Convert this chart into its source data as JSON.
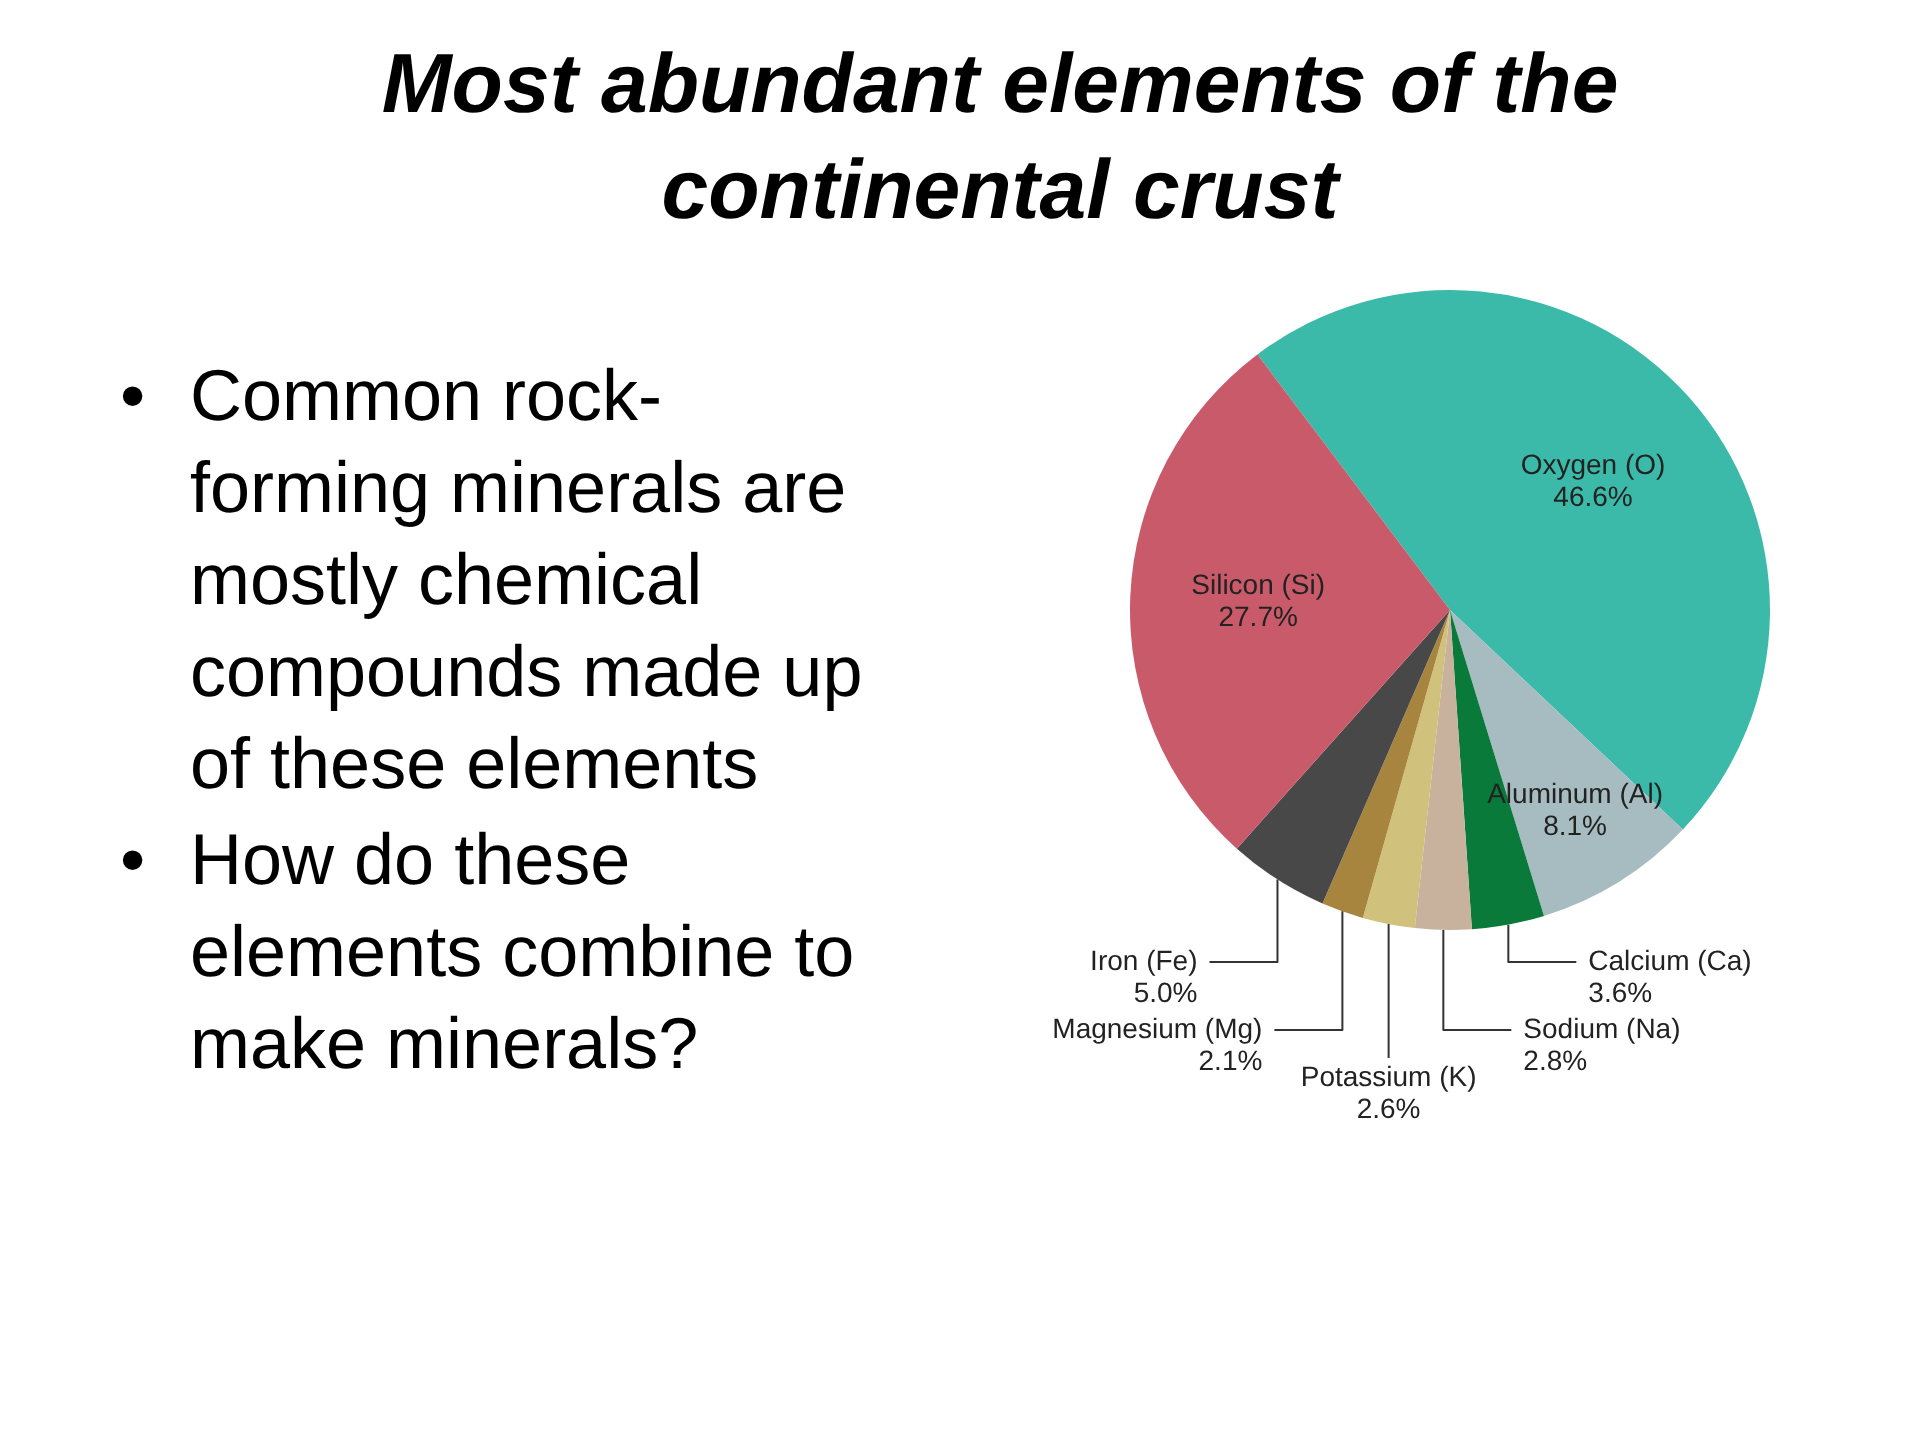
{
  "chart_data": {
    "type": "pie",
    "title": "Most abundant elements of the continental crust",
    "categories": [
      "Oxygen (O)",
      "Aluminum (Al)",
      "Calcium (Ca)",
      "Sodium (Na)",
      "Potassium (K)",
      "Magnesium (Mg)",
      "Iron (Fe)",
      "Silicon (Si)"
    ],
    "values": [
      46.6,
      8.1,
      3.6,
      2.8,
      2.6,
      2.1,
      5.0,
      27.7
    ],
    "colors": [
      "#3bbaa9",
      "#a6bcc1",
      "#0a7a3a",
      "#c8b29e",
      "#d0c27c",
      "#a8853f",
      "#484848",
      "#c95a6a"
    ],
    "value_labels": [
      "46.6%",
      "8.1%",
      "3.6%",
      "2.8%",
      "2.6%",
      "2.1%",
      "5.0%",
      "27.7%"
    ],
    "annotations": [
      "• Common rock-forming minerals are mostly chemical compounds made up of these elements",
      "• How do these elements combine to make minerals?"
    ]
  }
}
